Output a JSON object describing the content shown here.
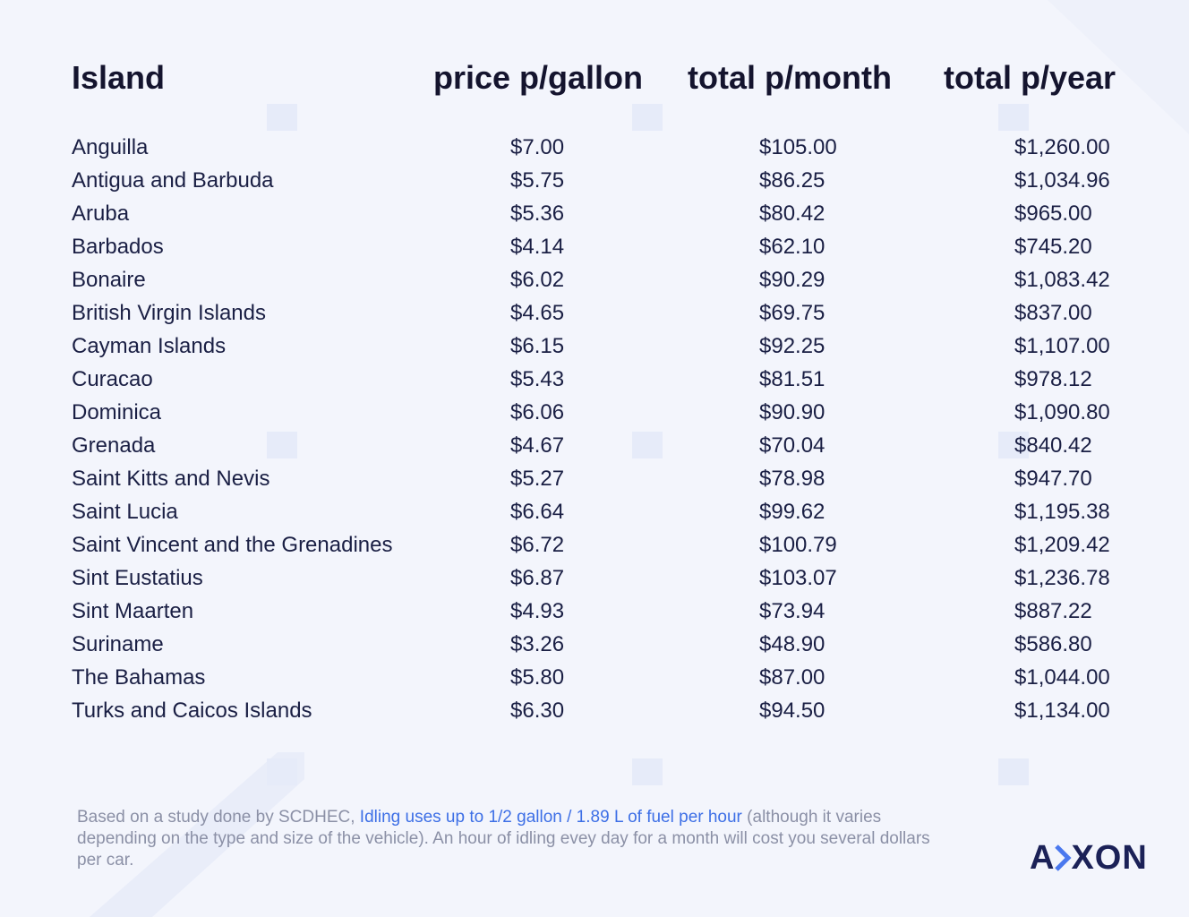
{
  "table": {
    "headers": [
      "Island",
      "price p/gallon",
      "total p/month",
      "total p/year"
    ],
    "rows": [
      {
        "island": "Anguilla",
        "price": "$7.00",
        "month": "$105.00",
        "year": "$1,260.00"
      },
      {
        "island": "Antigua and Barbuda",
        "price": "$5.75",
        "month": "$86.25",
        "year": "$1,034.96"
      },
      {
        "island": "Aruba",
        "price": "$5.36",
        "month": "$80.42",
        "year": "$965.00"
      },
      {
        "island": "Barbados",
        "price": "$4.14",
        "month": "$62.10",
        "year": "$745.20"
      },
      {
        "island": "Bonaire",
        "price": "$6.02",
        "month": "$90.29",
        "year": "$1,083.42"
      },
      {
        "island": "British Virgin Islands",
        "price": "$4.65",
        "month": "$69.75",
        "year": "$837.00"
      },
      {
        "island": "Cayman Islands",
        "price": "$6.15",
        "month": "$92.25",
        "year": "$1,107.00"
      },
      {
        "island": "Curacao",
        "price": "$5.43",
        "month": "$81.51",
        "year": "$978.12"
      },
      {
        "island": "Dominica",
        "price": "$6.06",
        "month": "$90.90",
        "year": "$1,090.80"
      },
      {
        "island": "Grenada",
        "price": "$4.67",
        "month": "$70.04",
        "year": "$840.42"
      },
      {
        "island": "Saint Kitts and Nevis",
        "price": "$5.27",
        "month": "$78.98",
        "year": "$947.70"
      },
      {
        "island": "Saint Lucia",
        "price": "$6.64",
        "month": "$99.62",
        "year": "$1,195.38"
      },
      {
        "island": "Saint Vincent and the Grenadines",
        "price": "$6.72",
        "month": "$100.79",
        "year": "$1,209.42"
      },
      {
        "island": "Sint Eustatius",
        "price": "$6.87",
        "month": "$103.07",
        "year": "$1,236.78"
      },
      {
        "island": "Sint Maarten",
        "price": "$4.93",
        "month": "$73.94",
        "year": "$887.22"
      },
      {
        "island": "Suriname",
        "price": "$3.26",
        "month": "$48.90",
        "year": "$586.80"
      },
      {
        "island": "The Bahamas",
        "price": "$5.80",
        "month": "$87.00",
        "year": "$1,044.00"
      },
      {
        "island": "Turks and Caicos Islands",
        "price": "$6.30",
        "month": "$94.50",
        "year": "$1,134.00"
      }
    ]
  },
  "footnote": {
    "prefix": "Based on a study done by SCDHEC, ",
    "link": "Idling uses up to 1/2 gallon / 1.89 L of fuel per hour",
    "suffix": " (although it varies depending on the type and size of the vehicle). An hour of idling evey day for a month will cost you several dollars per car."
  },
  "logo": {
    "part1": "A",
    "part2": "XON"
  },
  "colors": {
    "background": "#f3f5fc",
    "text": "#1a1f44",
    "link": "#3d6fe6",
    "footnote": "#8b90a6"
  }
}
